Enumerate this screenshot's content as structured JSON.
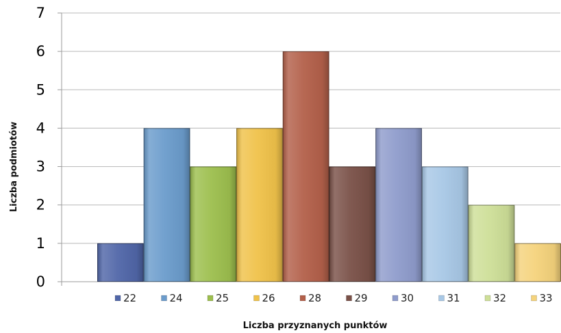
{
  "chart_data": {
    "type": "bar",
    "categories": [
      "22",
      "24",
      "25",
      "26",
      "28",
      "29",
      "30",
      "31",
      "32",
      "33"
    ],
    "values": [
      1,
      4,
      3,
      4,
      6,
      3,
      4,
      3,
      2,
      1
    ],
    "title": "",
    "xlabel": "Liczba przyznanych punktów",
    "ylabel": "Liczba podmiotów",
    "ylim": [
      0,
      7
    ],
    "yticks": [
      0,
      1,
      2,
      3,
      4,
      5,
      6,
      7
    ],
    "grid": true,
    "legend_position": "bottom",
    "colors": [
      "#5066a8",
      "#6b9ccc",
      "#9dbf4e",
      "#f0c24a",
      "#b3604a",
      "#7a5148",
      "#8f9ccc",
      "#a8c8e6",
      "#cedf98",
      "#f5d37c"
    ]
  }
}
